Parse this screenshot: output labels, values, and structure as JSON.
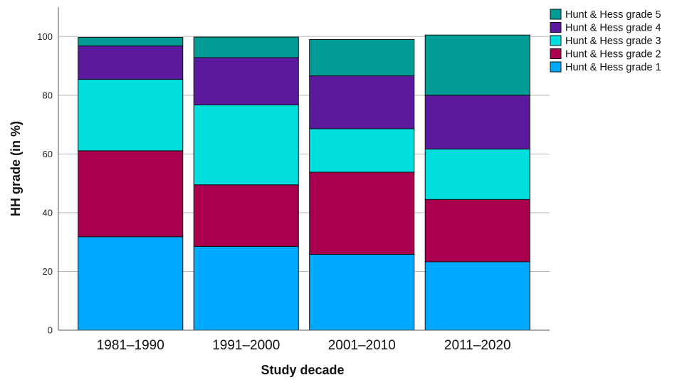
{
  "chart_data": {
    "type": "bar",
    "stacked": true,
    "categories": [
      "1981–1990",
      "1991–2000",
      "2001–2010",
      "2011–2020"
    ],
    "series": [
      {
        "name": "Hunt & Hess grade 1",
        "color": "#00aaff",
        "values": [
          31.8,
          28.5,
          25.8,
          23.3
        ]
      },
      {
        "name": "Hunt & Hess grade 2",
        "color": "#a8004f",
        "values": [
          29.3,
          21.0,
          28.0,
          21.2
        ]
      },
      {
        "name": "Hunt & Hess grade 3",
        "color": "#00dede",
        "values": [
          24.3,
          27.2,
          14.8,
          17.2
        ]
      },
      {
        "name": "Hunt & Hess grade 4",
        "color": "#5b1a9e",
        "values": [
          11.4,
          16.1,
          18.0,
          18.3
        ]
      },
      {
        "name": "Hunt & Hess grade 5",
        "color": "#009c95",
        "values": [
          2.9,
          7.0,
          12.4,
          20.5
        ]
      }
    ],
    "xlabel": "Study decade",
    "ylabel": "HH grade (in %)",
    "ylim": [
      0,
      110
    ],
    "yticks": [
      0,
      20,
      40,
      60,
      80,
      100
    ],
    "grid": true,
    "legend_position": "top-right",
    "legend_order": "reversed"
  }
}
